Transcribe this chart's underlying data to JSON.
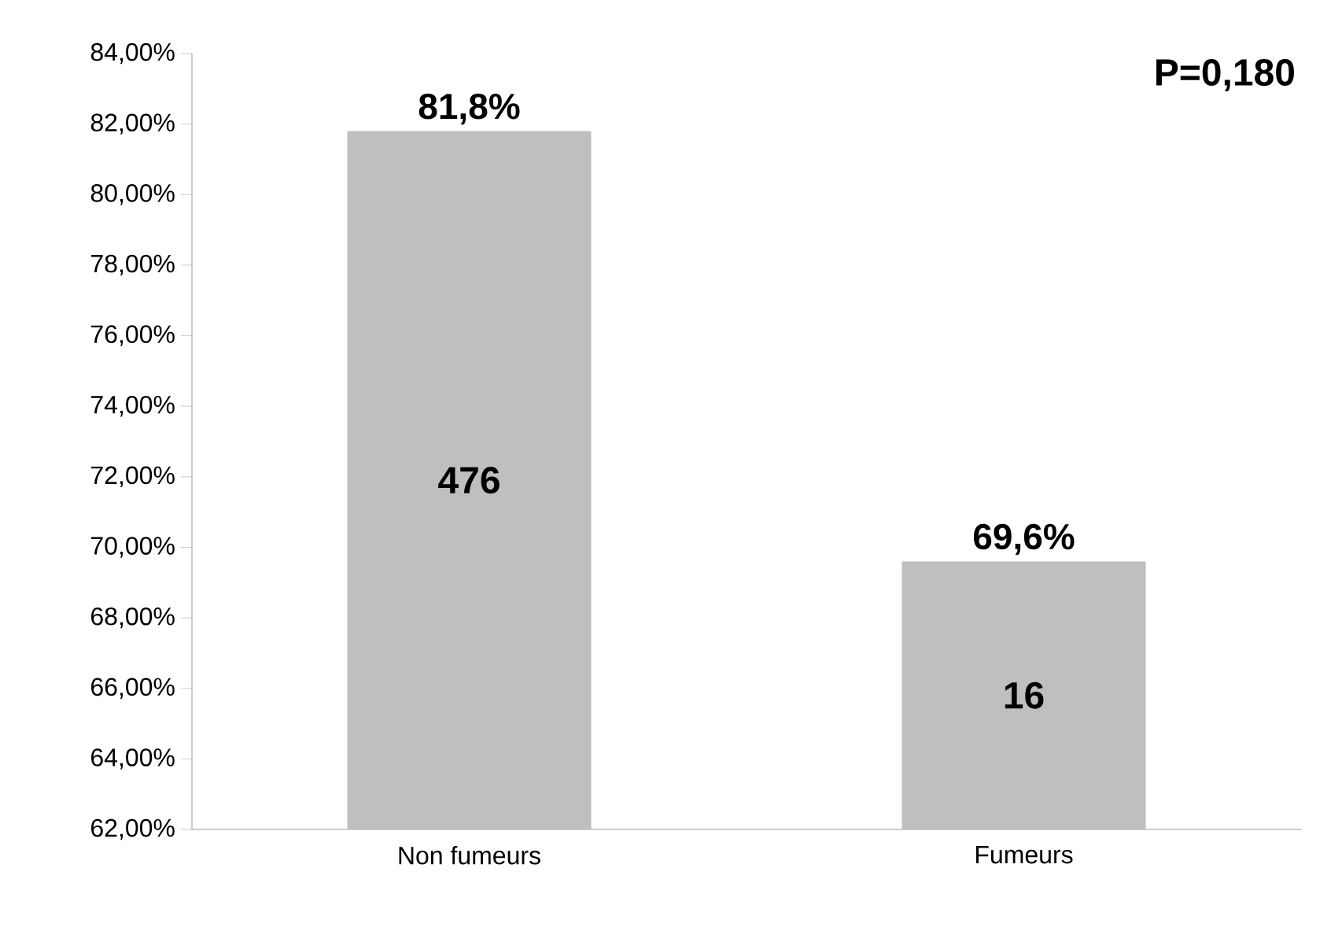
{
  "chart_data": {
    "type": "bar",
    "categories": [
      "Non fumeurs",
      "Fumeurs"
    ],
    "values": [
      81.8,
      69.6
    ],
    "color": "#bfbfbf",
    "value_labels": [
      "81,8%",
      "69,6%"
    ],
    "ylim": [
      62,
      84
    ],
    "yticks": [
      {
        "value": 62,
        "label": "62,00%"
      },
      {
        "value": 64,
        "label": "64,00%"
      },
      {
        "value": 66,
        "label": "66,00%"
      },
      {
        "value": 68,
        "label": "68,00%"
      },
      {
        "value": 70,
        "label": "70,00%"
      },
      {
        "value": 72,
        "label": "72,00%"
      },
      {
        "value": 74,
        "label": "74,00%"
      },
      {
        "value": 76,
        "label": "76,00%"
      },
      {
        "value": 78,
        "label": "78,00%"
      },
      {
        "value": 80,
        "label": "80,00%"
      },
      {
        "value": 82,
        "label": "82,00%"
      },
      {
        "value": 84,
        "label": "84,00%"
      }
    ],
    "annotations": [
      "476",
      "16",
      "P=0,180"
    ],
    "grid": false
  }
}
